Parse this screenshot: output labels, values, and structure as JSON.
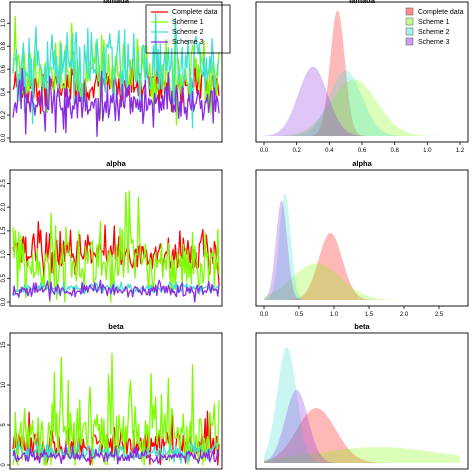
{
  "figure": {
    "panels": [
      {
        "id": "trace-lambda",
        "title": "lamada",
        "kind": "trace",
        "y_ticks": [
          "0.0",
          "0.2",
          "0.4",
          "0.6",
          "0.8",
          "1.0"
        ],
        "x_ticks": [],
        "legend": [
          "Complete data",
          "Scheme 1",
          "Scheme 2",
          "Scheme 3"
        ]
      },
      {
        "id": "density-lambda",
        "title": "lamada",
        "kind": "density",
        "y_ticks": [],
        "x_ticks": [
          "0.0",
          "0.2",
          "0.4",
          "0.6",
          "0.8",
          "1.0",
          "1.2"
        ],
        "legend": [
          "Complete data",
          "Scheme 1",
          "Scheme 2",
          "Scheme 3"
        ]
      },
      {
        "id": "trace-alpha",
        "title": "alpha",
        "kind": "trace",
        "y_ticks": [
          "0.0",
          "0.5",
          "1.0",
          "1.5",
          "2.0",
          "2.5"
        ],
        "x_ticks": [],
        "legend": []
      },
      {
        "id": "density-alpha",
        "title": "alpha",
        "kind": "density",
        "y_ticks": [],
        "x_ticks": [
          "0.0",
          "0.5",
          "1.0",
          "1.5",
          "2.0",
          "2.5"
        ],
        "legend": []
      },
      {
        "id": "trace-beta",
        "title": "beta",
        "kind": "trace",
        "y_ticks": [
          "0",
          "5",
          "10",
          "15"
        ],
        "x_ticks": [],
        "legend": []
      },
      {
        "id": "density-beta",
        "title": "beta",
        "kind": "density",
        "y_ticks": [],
        "x_ticks": [],
        "legend": []
      }
    ]
  },
  "chart_data": [
    {
      "type": "line",
      "title": "lamada",
      "xlabel": "",
      "ylabel": "",
      "ylim": [
        0,
        1.15
      ],
      "grid": false,
      "legend_position": "top-right",
      "series": [
        {
          "name": "Complete data",
          "color": "#ff0000",
          "mean": 0.45,
          "spread": 0.09,
          "max_spike": 0.7
        },
        {
          "name": "Scheme 1",
          "color": "#7cfc00",
          "mean": 0.55,
          "spread": 0.15,
          "max_spike": 1.12
        },
        {
          "name": "Scheme 2",
          "color": "#40e0d0",
          "mean": 0.6,
          "spread": 0.18,
          "max_spike": 1.08
        },
        {
          "name": "Scheme 3",
          "color": "#8a2be2",
          "mean": 0.3,
          "spread": 0.1,
          "max_spike": 0.62
        }
      ]
    },
    {
      "type": "area",
      "title": "lamada",
      "xlabel": "",
      "ylabel": "",
      "xlim": [
        0,
        1.2
      ],
      "grid": false,
      "legend_position": "top-right",
      "series": [
        {
          "name": "Complete data",
          "color": "#ff0000",
          "mode": 0.45,
          "sd": 0.045,
          "peak": 1.0
        },
        {
          "name": "Scheme 1",
          "color": "#7cfc00",
          "mode": 0.55,
          "sd": 0.14,
          "peak": 0.45
        },
        {
          "name": "Scheme 2",
          "color": "#40e0d0",
          "mode": 0.5,
          "sd": 0.1,
          "peak": 0.52
        },
        {
          "name": "Scheme 3",
          "color": "#8a2be2",
          "mode": 0.3,
          "sd": 0.09,
          "peak": 0.55
        }
      ]
    },
    {
      "type": "line",
      "title": "alpha",
      "xlabel": "",
      "ylabel": "",
      "ylim": [
        0,
        2.7
      ],
      "grid": false,
      "series": [
        {
          "name": "Complete data",
          "color": "#ff0000",
          "mean": 1.0,
          "spread": 0.22,
          "max_spike": 1.7
        },
        {
          "name": "Scheme 1",
          "color": "#7cfc00",
          "mean": 0.85,
          "spread": 0.35,
          "max_spike": 2.6
        },
        {
          "name": "Scheme 2",
          "color": "#40e0d0",
          "mean": 0.28,
          "spread": 0.06,
          "max_spike": 0.5
        },
        {
          "name": "Scheme 3",
          "color": "#8a2be2",
          "mean": 0.25,
          "spread": 0.07,
          "max_spike": 0.55
        }
      ]
    },
    {
      "type": "area",
      "title": "alpha",
      "xlabel": "",
      "ylabel": "",
      "xlim": [
        0,
        2.8
      ],
      "grid": false,
      "series": [
        {
          "name": "Complete data",
          "color": "#ff0000",
          "mode": 0.95,
          "sd": 0.17,
          "peak": 0.55
        },
        {
          "name": "Scheme 1",
          "color": "#7cfc00",
          "mode": 0.75,
          "sd": 0.35,
          "peak": 0.3
        },
        {
          "name": "Scheme 2",
          "color": "#40e0d0",
          "mode": 0.3,
          "sd": 0.08,
          "peak": 0.88
        },
        {
          "name": "Scheme 3",
          "color": "#8a2be2",
          "mode": 0.25,
          "sd": 0.08,
          "peak": 0.82
        }
      ]
    },
    {
      "type": "line",
      "title": "beta",
      "xlabel": "",
      "ylabel": "",
      "ylim": [
        0,
        16
      ],
      "grid": false,
      "series": [
        {
          "name": "Complete data",
          "color": "#ff0000",
          "mean": 2.5,
          "spread": 1.2,
          "max_spike": 7
        },
        {
          "name": "Scheme 1",
          "color": "#7cfc00",
          "mean": 4.0,
          "spread": 2.5,
          "max_spike": 15
        },
        {
          "name": "Scheme 2",
          "color": "#40e0d0",
          "mean": 1.5,
          "spread": 0.5,
          "max_spike": 3
        },
        {
          "name": "Scheme 3",
          "color": "#8a2be2",
          "mean": 1.0,
          "spread": 0.4,
          "max_spike": 2.5
        }
      ]
    },
    {
      "type": "area",
      "title": "beta",
      "xlabel": "",
      "ylabel": "",
      "grid": false,
      "series": [
        {
          "name": "Complete data",
          "color": "#ff0000",
          "mode": 1.6,
          "sd": 0.6,
          "peak": 0.45
        },
        {
          "name": "Scheme 1",
          "color": "#7cfc00",
          "mode": 3.5,
          "sd": 2.0,
          "peak": 0.13
        },
        {
          "name": "Scheme 2",
          "color": "#40e0d0",
          "mode": 0.7,
          "sd": 0.3,
          "peak": 0.95
        },
        {
          "name": "Scheme 3",
          "color": "#8a2be2",
          "mode": 1.0,
          "sd": 0.35,
          "peak": 0.6
        }
      ]
    }
  ]
}
